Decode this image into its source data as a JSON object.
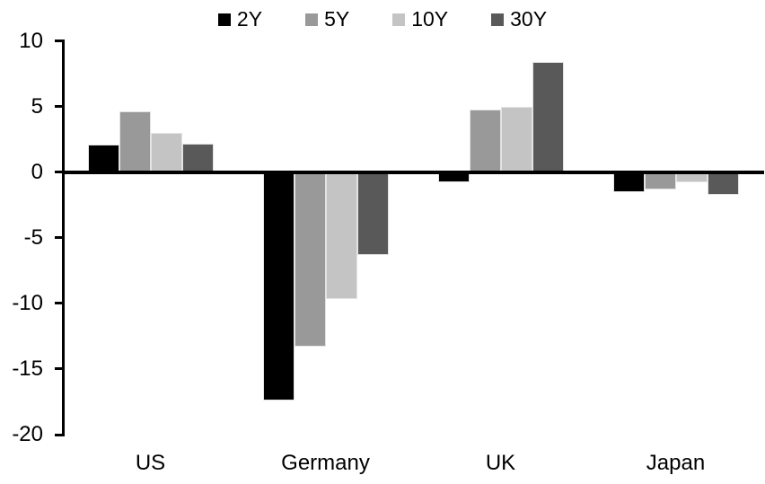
{
  "chart_data": {
    "type": "bar",
    "title": "",
    "categories": [
      "US",
      "Germany",
      "UK",
      "Japan"
    ],
    "series": [
      {
        "name": "2Y",
        "color": "#000000",
        "values": [
          2.1,
          -17.4,
          -0.8,
          -1.5
        ]
      },
      {
        "name": "5Y",
        "color": "#999999",
        "values": [
          4.6,
          -13.3,
          4.8,
          -1.3
        ]
      },
      {
        "name": "10Y",
        "color": "#c4c4c4",
        "values": [
          3.0,
          -9.7,
          5.0,
          -0.8
        ]
      },
      {
        "name": "30Y",
        "color": "#595959",
        "values": [
          2.2,
          -6.3,
          8.4,
          -1.7
        ]
      }
    ],
    "ylim": [
      -20,
      10
    ],
    "yticks": [
      10,
      5,
      0,
      -5,
      -10,
      -15,
      -20
    ],
    "legend_position": "top",
    "grid": false,
    "axis_color": "#000000",
    "background_color": "#ffffff"
  }
}
